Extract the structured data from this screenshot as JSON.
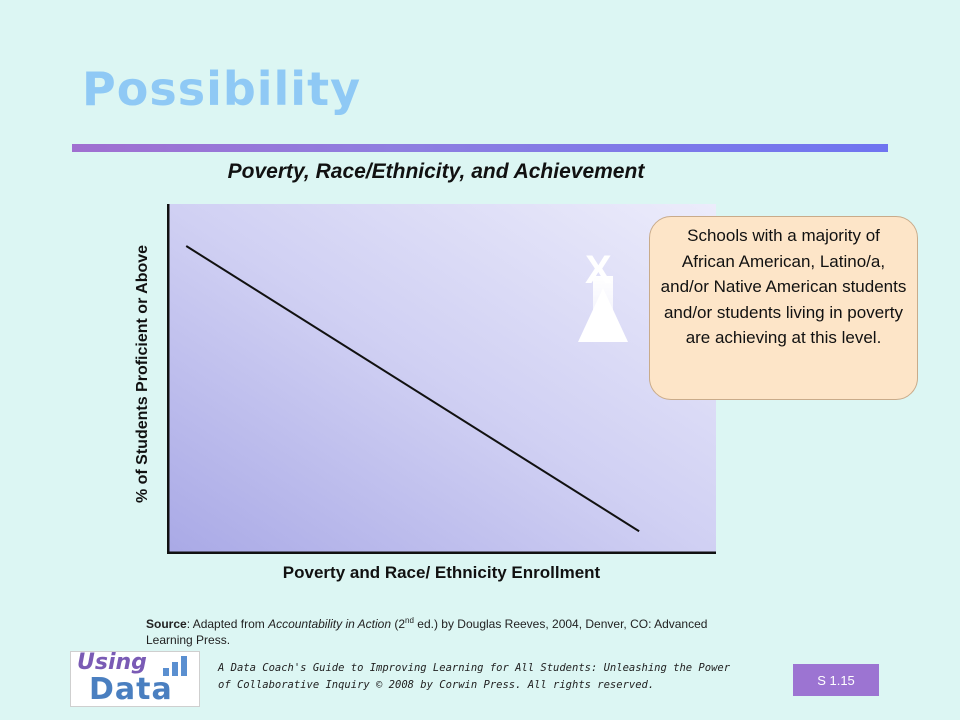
{
  "slide": {
    "title": "Possibility",
    "badge": "S 1.15"
  },
  "chart_data": {
    "type": "line",
    "title": "Poverty, Race/Ethnicity, and Achievement",
    "xlabel": "Poverty and Race/ Ethnicity Enrollment",
    "ylabel": "% of Students Proficient or Above",
    "xlim": [
      0,
      1
    ],
    "ylim": [
      0,
      1
    ],
    "grid": false,
    "series": [
      {
        "x": [
          0.035,
          0.86
        ],
        "y": [
          0.88,
          0.065
        ]
      }
    ],
    "annotation": {
      "marker": "X",
      "arrow": "up"
    }
  },
  "callout": {
    "text": "Schools with a majority of African American, Latino/a, and/or Native American students and/or students living in poverty are achieving at this level."
  },
  "source": {
    "label": "Source",
    "pre": ": Adapted from ",
    "book": "Accountability in Action",
    "edition_pre": " (2",
    "edition_sup": "nd",
    "post": " ed.) by Douglas Reeves, 2004, Denver, CO: Advanced Learning Press."
  },
  "footer": {
    "logo_top": "Using",
    "logo_bottom": "Data",
    "citation": "A Data Coach's Guide to Improving Learning for All Students: Unleashing the Power of Collaborative Inquiry © 2008 by Corwin Press. All rights reserved."
  },
  "colors": {
    "background": "#dcf6f3",
    "title": "#8fc9f5",
    "rule": "#8f7ee0",
    "callout_fill": "#fde5c8",
    "badge": "#9c74d2"
  }
}
